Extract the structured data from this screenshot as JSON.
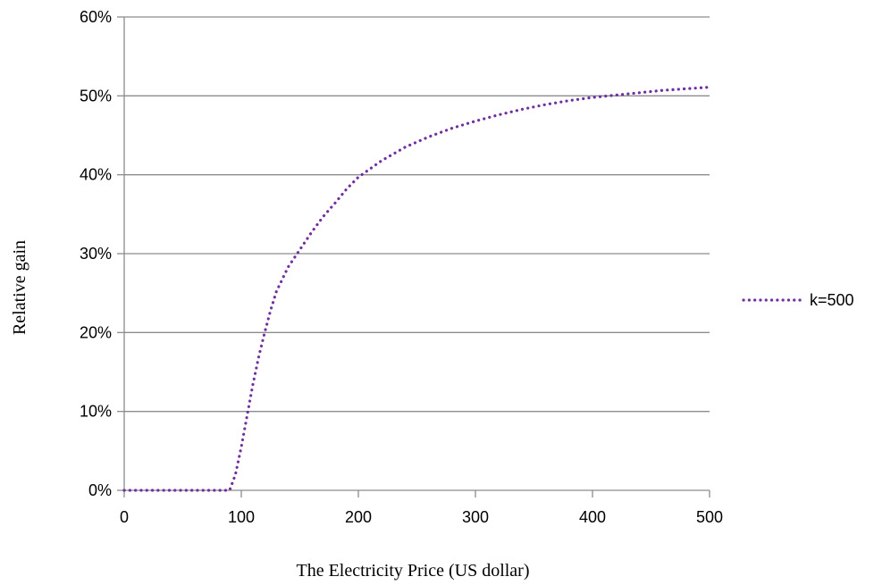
{
  "chart_data": {
    "type": "line",
    "title": "",
    "xlabel": "The Electricity Price (US dollar)",
    "ylabel": "Relative gain",
    "xlim": [
      0,
      500
    ],
    "ylim": [
      0,
      0.6
    ],
    "x_ticks": [
      0,
      100,
      200,
      300,
      400,
      500
    ],
    "x_tick_labels": [
      "0",
      "100",
      "200",
      "300",
      "400",
      "500"
    ],
    "y_ticks": [
      0,
      0.1,
      0.2,
      0.3,
      0.4,
      0.5,
      0.6
    ],
    "y_tick_labels": [
      "0%",
      "10%",
      "20%",
      "30%",
      "40%",
      "50%",
      "60%"
    ],
    "grid": "horizontal",
    "legend_position": "right",
    "series": [
      {
        "name": "k=500",
        "color": "#7030a0",
        "line_style": "dotted",
        "x": [
          0,
          20,
          40,
          60,
          80,
          90,
          95,
          100,
          105,
          110,
          115,
          120,
          125,
          130,
          140,
          150,
          160,
          170,
          180,
          190,
          200,
          220,
          240,
          260,
          280,
          300,
          320,
          340,
          360,
          380,
          400,
          420,
          440,
          460,
          480,
          500
        ],
        "y": [
          0,
          0,
          0,
          0,
          0,
          0,
          0.02,
          0.055,
          0.095,
          0.135,
          0.17,
          0.2,
          0.228,
          0.252,
          0.283,
          0.305,
          0.327,
          0.347,
          0.364,
          0.382,
          0.397,
          0.418,
          0.435,
          0.448,
          0.459,
          0.468,
          0.476,
          0.483,
          0.489,
          0.494,
          0.498,
          0.501,
          0.504,
          0.507,
          0.509,
          0.511
        ]
      }
    ]
  }
}
